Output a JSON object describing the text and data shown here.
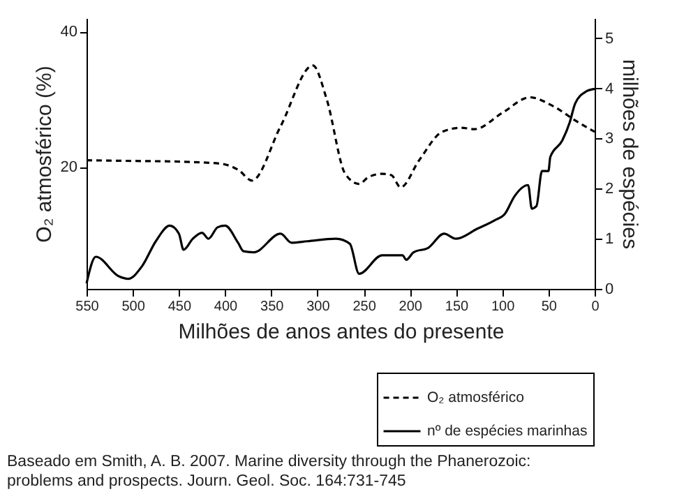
{
  "chart_data": {
    "type": "line",
    "xlabel": "Milhões de anos antes do presente",
    "ylabel": "O₂ atmosférico (%)",
    "y2label": "milhões de espécies",
    "xlim": [
      550,
      0
    ],
    "xticks": [
      550,
      500,
      450,
      400,
      350,
      300,
      250,
      200,
      150,
      100,
      50,
      0
    ],
    "ylim": [
      2,
      42
    ],
    "yticks": [
      20,
      40
    ],
    "y2lim": [
      0,
      5.4
    ],
    "y2ticks": [
      0,
      1,
      2,
      3,
      4,
      5
    ],
    "grid": false,
    "legend": "bottom right",
    "series": [
      {
        "name": "O₂ atmosférico",
        "color": "#000000",
        "line_style": "dashed",
        "x": [
          550,
          500,
          450,
          405,
          385,
          371,
          340,
          305,
          290,
          270,
          255,
          245,
          230,
          220,
          210,
          190,
          165,
          145,
          130,
          100,
          70,
          45,
          20,
          0
        ],
        "values": [
          21,
          20.9,
          20.8,
          20.5,
          19.5,
          18,
          26,
          35,
          30,
          19,
          17.5,
          18.5,
          19,
          18.8,
          17,
          21,
          25.2,
          25.8,
          25.6,
          28,
          30.3,
          29,
          26.8,
          25.2
        ]
      },
      {
        "name": "nº de espécies marinhas",
        "color": "#000000",
        "line_style": "solid",
        "axis": "y2",
        "x": [
          550,
          540,
          515,
          505,
          490,
          475,
          460,
          450,
          445,
          435,
          425,
          418,
          408,
          400,
          386,
          380,
          369,
          340,
          328,
          311,
          280,
          265,
          255,
          230,
          208,
          204,
          196,
          180,
          163,
          150,
          127,
          108,
          97,
          87,
          72,
          68,
          63,
          57,
          50,
          48,
          35,
          27,
          21,
          9,
          0
        ],
        "values": [
          0.11,
          0.64,
          0.25,
          0.2,
          0.45,
          0.95,
          1.26,
          1.1,
          0.78,
          1.0,
          1.12,
          1.0,
          1.23,
          1.26,
          0.92,
          0.75,
          0.73,
          1.1,
          0.92,
          0.95,
          1.0,
          0.9,
          0.3,
          0.67,
          0.67,
          0.58,
          0.73,
          0.82,
          1.1,
          1.0,
          1.2,
          1.37,
          1.5,
          1.84,
          2.07,
          1.6,
          1.65,
          2.35,
          2.35,
          2.63,
          2.96,
          3.32,
          3.7,
          3.94,
          3.99
        ]
      }
    ],
    "annotations": [
      "Baseado em Smith, A. B. 2007. Marine diversity through the Phanerozoic:",
      "problems and prospects. Journ. Geol. Soc. 164:731-745"
    ]
  }
}
